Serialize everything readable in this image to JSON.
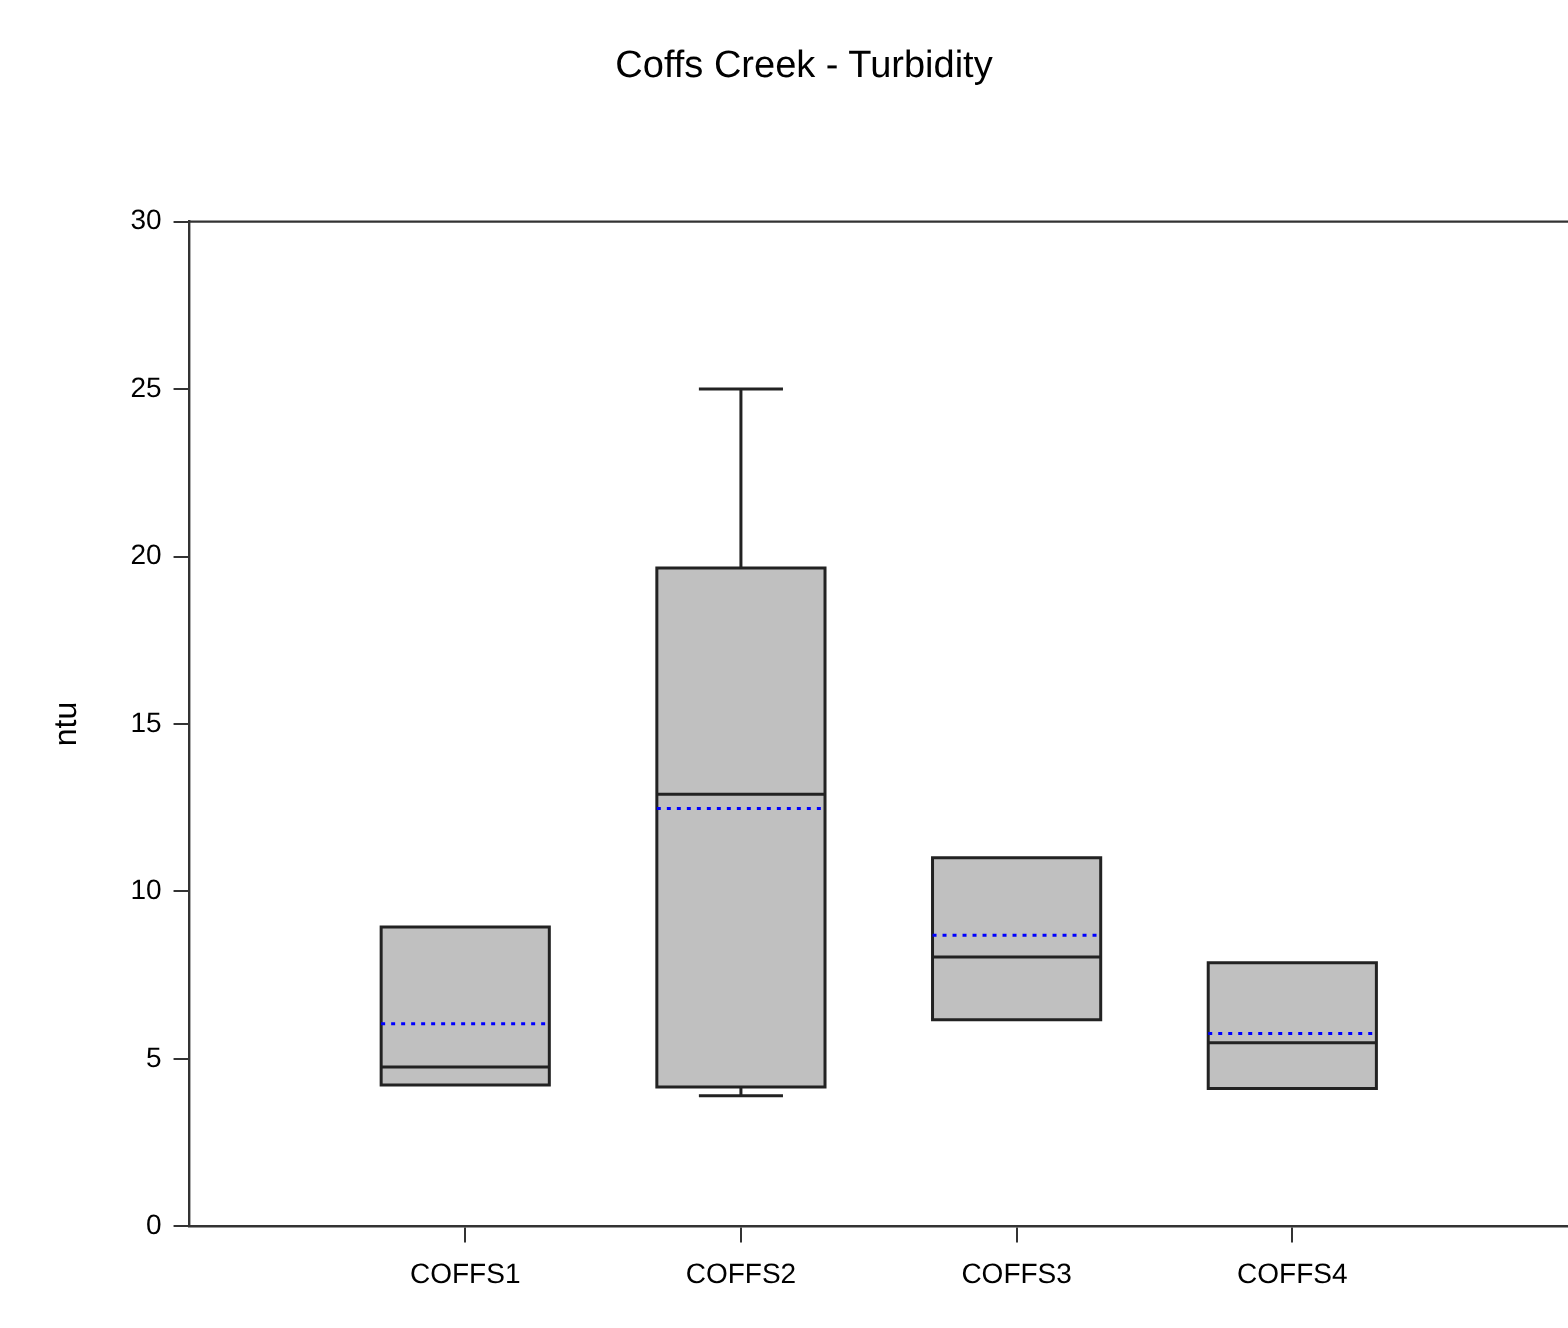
{
  "chart_data": {
    "type": "box",
    "title": "Coffs Creek - Turbidity",
    "ylabel": "ntu",
    "categories": [
      "COFFS1",
      "COFFS2",
      "COFFS3",
      "COFFS4"
    ],
    "color": "#c0c0c0",
    "boxes": [
      {
        "low": 4.22,
        "q1": 4.22,
        "median": 4.76,
        "q3": 8.94,
        "high": 8.94,
        "mean": 6.05
      },
      {
        "low": 3.9,
        "q1": 4.16,
        "median": 12.9,
        "q3": 19.66,
        "high": 25,
        "mean": 12.48
      },
      {
        "low": 6.17,
        "q1": 6.17,
        "median": 8.04,
        "q3": 11.01,
        "high": 11.01,
        "mean": 8.69
      },
      {
        "low": 4.12,
        "q1": 4.12,
        "median": 5.48,
        "q3": 7.87,
        "high": 7.87,
        "mean": 5.76
      }
    ],
    "ylim": [
      0,
      30
    ],
    "yticks": [
      0,
      5,
      10,
      15,
      20,
      25,
      30
    ],
    "grid": false,
    "legend": false
  }
}
